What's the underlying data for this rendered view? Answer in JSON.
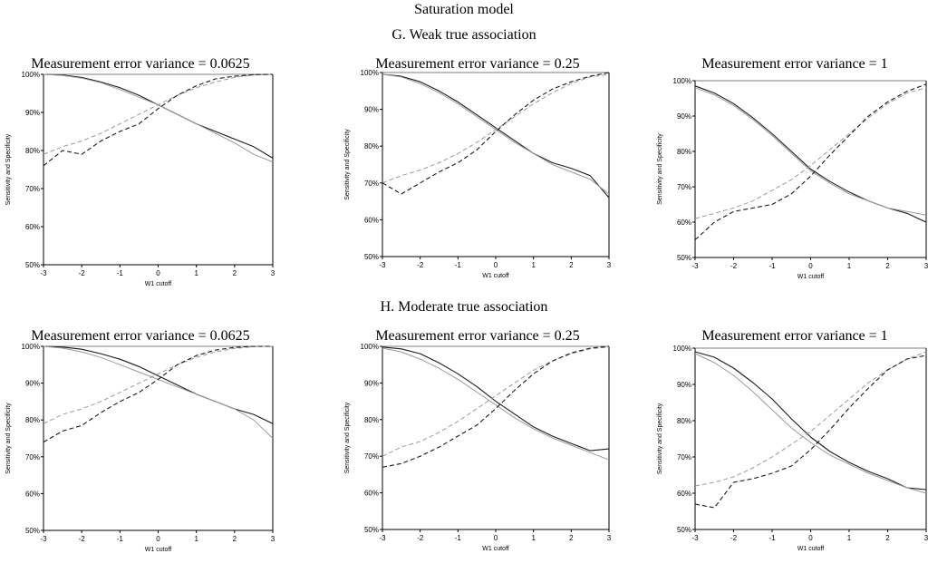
{
  "page": {
    "main_title": "Saturation model",
    "section_g": "G. Weak true association",
    "section_h": "H. Moderate true association"
  },
  "colors": {
    "dark": "#1a1a1a",
    "light": "#9a9a9a",
    "axis": "#000000"
  },
  "chart_data": [
    {
      "type": "line",
      "panel": "G1",
      "title": "Measurement error variance = 0.0625",
      "xlabel": "W1 cutoff",
      "ylabel": "Sensitivity and Specificity",
      "xlim": [
        -3,
        3
      ],
      "ylim": [
        50,
        100
      ],
      "xticks": [
        "-3",
        "-2",
        "-1",
        "0",
        "1",
        "2",
        "3"
      ],
      "yticks": [
        "50%",
        "60%",
        "70%",
        "80%",
        "90%",
        "100%"
      ],
      "grid": false,
      "legend": "none",
      "x": [
        -3,
        -2.5,
        -2,
        -1.5,
        -1,
        -0.5,
        0,
        0.5,
        1,
        1.5,
        2,
        2.5,
        3
      ],
      "series": [
        {
          "style": "solid-dark",
          "values": [
            100,
            99.8,
            99.2,
            98,
            96.5,
            94.5,
            92,
            89.5,
            87,
            85,
            83,
            81,
            78
          ]
        },
        {
          "style": "solid-light",
          "values": [
            100,
            99.7,
            99,
            97.8,
            96,
            94,
            92,
            89.5,
            87,
            84.5,
            82,
            79,
            77
          ]
        },
        {
          "style": "dashed-light",
          "values": [
            79,
            81,
            82.5,
            84.5,
            87,
            89.5,
            92,
            94.5,
            96.5,
            98,
            99.2,
            99.8,
            100
          ]
        },
        {
          "style": "dashed-dark",
          "values": [
            76,
            80,
            79,
            82.5,
            85,
            87,
            91,
            94.5,
            97,
            98.8,
            99.5,
            99.9,
            100
          ]
        }
      ]
    },
    {
      "type": "line",
      "panel": "G2",
      "title": "Measurement error variance = 0.25",
      "xlabel": "W1 cutoff",
      "ylabel": "Sensitivity and Specificity",
      "xlim": [
        -3,
        3
      ],
      "ylim": [
        50,
        100
      ],
      "xticks": [
        "-3",
        "-2",
        "-1",
        "0",
        "1",
        "2",
        "3"
      ],
      "yticks": [
        "50%",
        "60%",
        "70%",
        "80%",
        "90%",
        "100%"
      ],
      "grid": false,
      "legend": "none",
      "x": [
        -3,
        -2.5,
        -2,
        -1.5,
        -1,
        -0.5,
        0,
        0.5,
        1,
        1.5,
        2,
        2.5,
        3
      ],
      "series": [
        {
          "style": "solid-dark",
          "values": [
            99.5,
            99,
            97.5,
            95,
            92,
            88.5,
            85,
            81.5,
            78,
            75.5,
            74,
            72,
            66
          ]
        },
        {
          "style": "solid-light",
          "values": [
            99.5,
            98.8,
            97,
            94.5,
            91.5,
            88,
            84.5,
            81,
            78,
            75,
            73,
            71,
            67
          ]
        },
        {
          "style": "dashed-light",
          "values": [
            70,
            72,
            73.5,
            75.5,
            78,
            81,
            84.5,
            88,
            91.5,
            94.5,
            97,
            98.8,
            99.5
          ]
        },
        {
          "style": "dashed-dark",
          "values": [
            70,
            67,
            70,
            73,
            75.5,
            79,
            84,
            88.5,
            92.5,
            95.5,
            97.5,
            99,
            100
          ]
        }
      ]
    },
    {
      "type": "line",
      "panel": "G3",
      "title": "Measurement error variance = 1",
      "xlabel": "W1 cutoff",
      "ylabel": "Sensitivity and Specificity",
      "xlim": [
        -3,
        3
      ],
      "ylim": [
        50,
        100
      ],
      "xticks": [
        "-3",
        "-2",
        "-1",
        "0",
        "1",
        "2",
        "3"
      ],
      "yticks": [
        "50%",
        "60%",
        "70%",
        "80%",
        "90%",
        "100%"
      ],
      "grid": false,
      "legend": "none",
      "x": [
        -3,
        -2.5,
        -2,
        -1.5,
        -1,
        -0.5,
        0,
        0.5,
        1,
        1.5,
        2,
        2.5,
        3
      ],
      "series": [
        {
          "style": "solid-dark",
          "values": [
            98.5,
            96.5,
            93.5,
            89.5,
            85,
            80,
            75,
            71.5,
            68.5,
            66,
            64,
            62.5,
            60
          ]
        },
        {
          "style": "solid-light",
          "values": [
            98,
            96,
            93,
            89,
            84.5,
            79.5,
            74.5,
            71,
            68,
            66,
            64,
            63,
            62
          ]
        },
        {
          "style": "dashed-light",
          "values": [
            61,
            62.5,
            64,
            66,
            69,
            72,
            76,
            80.5,
            85,
            89.5,
            93.5,
            96.5,
            98
          ]
        },
        {
          "style": "dashed-dark",
          "values": [
            55,
            60,
            63,
            64,
            65,
            68,
            73,
            79,
            84.5,
            90,
            94,
            97,
            99
          ]
        }
      ]
    },
    {
      "type": "line",
      "panel": "H1",
      "title": "Measurement error variance = 0.0625",
      "xlabel": "W1 cutoff",
      "ylabel": "Sensitivity and Specificity",
      "xlim": [
        -3,
        3
      ],
      "ylim": [
        50,
        100
      ],
      "xticks": [
        "-3",
        "-2",
        "-1",
        "0",
        "1",
        "2",
        "3"
      ],
      "yticks": [
        "50%",
        "60%",
        "70%",
        "80%",
        "90%",
        "100%"
      ],
      "grid": false,
      "legend": "none",
      "x": [
        -3,
        -2.5,
        -2,
        -1.5,
        -1,
        -0.5,
        0,
        0.5,
        1,
        1.5,
        2,
        2.5,
        3
      ],
      "series": [
        {
          "style": "solid-dark",
          "values": [
            100,
            99.8,
            99.2,
            98,
            96.5,
            94.5,
            92,
            89.5,
            87,
            85,
            83,
            81.5,
            79
          ]
        },
        {
          "style": "solid-light",
          "values": [
            100,
            99.5,
            98.5,
            97,
            95,
            93,
            91,
            89,
            87,
            85,
            83,
            80,
            75
          ]
        },
        {
          "style": "dashed-light",
          "values": [
            79,
            81.5,
            83,
            85,
            87.5,
            90,
            92.5,
            95,
            97,
            98.5,
            99.4,
            99.9,
            100
          ]
        },
        {
          "style": "dashed-dark",
          "values": [
            74,
            77,
            78.5,
            82,
            85,
            87.5,
            91,
            95,
            97.5,
            99,
            99.7,
            100,
            100
          ]
        }
      ]
    },
    {
      "type": "line",
      "panel": "H2",
      "title": "Measurement error variance = 0.25",
      "xlabel": "W1 cutoff",
      "ylabel": "Sensitivity and Specificity",
      "xlim": [
        -3,
        3
      ],
      "ylim": [
        50,
        100
      ],
      "xticks": [
        "-3",
        "-2",
        "-1",
        "0",
        "1",
        "2",
        "3"
      ],
      "yticks": [
        "50%",
        "60%",
        "70%",
        "80%",
        "90%",
        "100%"
      ],
      "grid": false,
      "legend": "none",
      "x": [
        -3,
        -2.5,
        -2,
        -1.5,
        -1,
        -0.5,
        0,
        0.5,
        1,
        1.5,
        2,
        2.5,
        3
      ],
      "series": [
        {
          "style": "solid-dark",
          "values": [
            99.8,
            99.3,
            98,
            95.5,
            92.5,
            89,
            85,
            81.5,
            78,
            75.5,
            73.5,
            71.5,
            72
          ]
        },
        {
          "style": "solid-light",
          "values": [
            99.5,
            98.5,
            96.5,
            94,
            91,
            87.5,
            84,
            80.5,
            77.5,
            75,
            73,
            71,
            69
          ]
        },
        {
          "style": "dashed-light",
          "values": [
            70,
            72.5,
            74,
            76.5,
            79.5,
            83,
            86.5,
            90,
            93.5,
            96,
            98,
            99.3,
            99.8
          ]
        },
        {
          "style": "dashed-dark",
          "values": [
            67,
            68,
            70,
            72.5,
            75.5,
            78.5,
            83,
            88,
            92.5,
            96,
            98.2,
            99.5,
            100
          ]
        }
      ]
    },
    {
      "type": "line",
      "panel": "H3",
      "title": "Measurement error variance = 1",
      "xlabel": "W1 cutoff",
      "ylabel": "Sensitivity and Specificity",
      "xlim": [
        -3,
        3
      ],
      "ylim": [
        50,
        100
      ],
      "xticks": [
        "-3",
        "-2",
        "-1",
        "0",
        "1",
        "2",
        "3"
      ],
      "yticks": [
        "50%",
        "60%",
        "70%",
        "80%",
        "90%",
        "100%"
      ],
      "grid": false,
      "legend": "none",
      "x": [
        -3,
        -2.5,
        -2,
        -1.5,
        -1,
        -0.5,
        0,
        0.5,
        1,
        1.5,
        2,
        2.5,
        3
      ],
      "series": [
        {
          "style": "solid-dark",
          "values": [
            99,
            97.5,
            94.5,
            90.5,
            86,
            80.5,
            75.5,
            71.5,
            68.5,
            66,
            64,
            61.5,
            61
          ]
        },
        {
          "style": "solid-light",
          "values": [
            98.5,
            96,
            92.5,
            88,
            83,
            78,
            74,
            70.5,
            68,
            65.5,
            63.5,
            61.5,
            60
          ]
        },
        {
          "style": "dashed-light",
          "values": [
            62,
            63,
            64.5,
            67,
            70,
            73.5,
            77,
            81.5,
            86,
            90.5,
            94,
            97,
            99
          ]
        },
        {
          "style": "dashed-dark",
          "values": [
            57,
            56,
            63,
            64,
            65.5,
            67.5,
            72,
            77.5,
            83.5,
            89,
            94,
            97,
            98
          ]
        }
      ]
    }
  ]
}
